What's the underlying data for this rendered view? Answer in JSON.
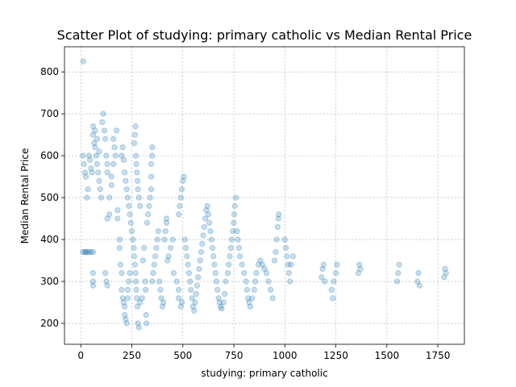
{
  "chart_data": {
    "type": "scatter",
    "title": "Scatter Plot of studying: primary catholic vs Median Rental Price",
    "xlabel": "studying: primary catholic",
    "ylabel": "Median Rental Price",
    "xlim": [
      -80,
      1880
    ],
    "ylim": [
      150,
      860
    ],
    "xticks": [
      0,
      250,
      500,
      750,
      1000,
      1250,
      1500,
      1750
    ],
    "yticks": [
      200,
      300,
      400,
      500,
      600,
      700,
      800
    ],
    "grid": true,
    "marker_color": "#1f77b4",
    "marker_alpha": 0.25,
    "points": [
      [
        12,
        825
      ],
      [
        10,
        600
      ],
      [
        15,
        580
      ],
      [
        20,
        560
      ],
      [
        25,
        550
      ],
      [
        30,
        500
      ],
      [
        35,
        520
      ],
      [
        40,
        600
      ],
      [
        45,
        590
      ],
      [
        50,
        570
      ],
      [
        55,
        560
      ],
      [
        60,
        650
      ],
      [
        65,
        630
      ],
      [
        70,
        620
      ],
      [
        75,
        600
      ],
      [
        80,
        580
      ],
      [
        85,
        560
      ],
      [
        90,
        540
      ],
      [
        95,
        520
      ],
      [
        100,
        500
      ],
      [
        105,
        680
      ],
      [
        110,
        700
      ],
      [
        115,
        660
      ],
      [
        120,
        640
      ],
      [
        125,
        600
      ],
      [
        130,
        580
      ],
      [
        60,
        670
      ],
      [
        70,
        660
      ],
      [
        80,
        640
      ],
      [
        90,
        610
      ],
      [
        20,
        370
      ],
      [
        30,
        370
      ],
      [
        40,
        370
      ],
      [
        50,
        370
      ],
      [
        60,
        370
      ],
      [
        10,
        370
      ],
      [
        25,
        370
      ],
      [
        60,
        320
      ],
      [
        60,
        300
      ],
      [
        60,
        290
      ],
      [
        120,
        320
      ],
      [
        125,
        300
      ],
      [
        130,
        290
      ],
      [
        130,
        450
      ],
      [
        140,
        460
      ],
      [
        140,
        500
      ],
      [
        150,
        530
      ],
      [
        150,
        550
      ],
      [
        160,
        580
      ],
      [
        160,
        640
      ],
      [
        165,
        620
      ],
      [
        170,
        600
      ],
      [
        175,
        660
      ],
      [
        180,
        470
      ],
      [
        180,
        450
      ],
      [
        190,
        400
      ],
      [
        190,
        380
      ],
      [
        195,
        340
      ],
      [
        200,
        320
      ],
      [
        200,
        280
      ],
      [
        205,
        260
      ],
      [
        210,
        250
      ],
      [
        215,
        240
      ],
      [
        215,
        220
      ],
      [
        220,
        210
      ],
      [
        225,
        200
      ],
      [
        230,
        260
      ],
      [
        230,
        280
      ],
      [
        235,
        300
      ],
      [
        240,
        320
      ],
      [
        200,
        600
      ],
      [
        205,
        620
      ],
      [
        210,
        590
      ],
      [
        215,
        560
      ],
      [
        220,
        540
      ],
      [
        225,
        520
      ],
      [
        230,
        500
      ],
      [
        235,
        480
      ],
      [
        240,
        460
      ],
      [
        245,
        440
      ],
      [
        250,
        420
      ],
      [
        255,
        400
      ],
      [
        260,
        380
      ],
      [
        262,
        360
      ],
      [
        265,
        340
      ],
      [
        268,
        320
      ],
      [
        270,
        300
      ],
      [
        272,
        280
      ],
      [
        275,
        260
      ],
      [
        278,
        240
      ],
      [
        262,
        630
      ],
      [
        265,
        650
      ],
      [
        268,
        670
      ],
      [
        270,
        600
      ],
      [
        272,
        580
      ],
      [
        275,
        560
      ],
      [
        278,
        540
      ],
      [
        280,
        520
      ],
      [
        285,
        500
      ],
      [
        290,
        480
      ],
      [
        280,
        200
      ],
      [
        285,
        190
      ],
      [
        290,
        250
      ],
      [
        300,
        260
      ],
      [
        305,
        350
      ],
      [
        310,
        380
      ],
      [
        315,
        300
      ],
      [
        318,
        280
      ],
      [
        320,
        220
      ],
      [
        322,
        200
      ],
      [
        325,
        440
      ],
      [
        330,
        460
      ],
      [
        335,
        480
      ],
      [
        340,
        500
      ],
      [
        345,
        520
      ],
      [
        345,
        550
      ],
      [
        345,
        580
      ],
      [
        350,
        600
      ],
      [
        350,
        620
      ],
      [
        350,
        300
      ],
      [
        355,
        320
      ],
      [
        360,
        340
      ],
      [
        365,
        360
      ],
      [
        370,
        380
      ],
      [
        375,
        400
      ],
      [
        380,
        420
      ],
      [
        385,
        300
      ],
      [
        390,
        280
      ],
      [
        395,
        260
      ],
      [
        400,
        240
      ],
      [
        405,
        250
      ],
      [
        410,
        400
      ],
      [
        415,
        420
      ],
      [
        420,
        440
      ],
      [
        420,
        450
      ],
      [
        425,
        350
      ],
      [
        430,
        360
      ],
      [
        440,
        380
      ],
      [
        450,
        400
      ],
      [
        455,
        320
      ],
      [
        470,
        300
      ],
      [
        480,
        280
      ],
      [
        480,
        260
      ],
      [
        490,
        240
      ],
      [
        495,
        250
      ],
      [
        480,
        460
      ],
      [
        485,
        480
      ],
      [
        490,
        500
      ],
      [
        495,
        520
      ],
      [
        500,
        540
      ],
      [
        505,
        550
      ],
      [
        510,
        400
      ],
      [
        515,
        380
      ],
      [
        520,
        360
      ],
      [
        525,
        340
      ],
      [
        530,
        320
      ],
      [
        535,
        300
      ],
      [
        540,
        280
      ],
      [
        545,
        260
      ],
      [
        550,
        240
      ],
      [
        555,
        230
      ],
      [
        560,
        250
      ],
      [
        565,
        270
      ],
      [
        570,
        290
      ],
      [
        575,
        310
      ],
      [
        580,
        330
      ],
      [
        585,
        350
      ],
      [
        590,
        370
      ],
      [
        595,
        390
      ],
      [
        600,
        410
      ],
      [
        605,
        430
      ],
      [
        610,
        450
      ],
      [
        615,
        470
      ],
      [
        620,
        480
      ],
      [
        625,
        460
      ],
      [
        630,
        440
      ],
      [
        635,
        420
      ],
      [
        640,
        400
      ],
      [
        645,
        380
      ],
      [
        650,
        360
      ],
      [
        655,
        340
      ],
      [
        660,
        320
      ],
      [
        665,
        300
      ],
      [
        670,
        280
      ],
      [
        675,
        260
      ],
      [
        680,
        250
      ],
      [
        685,
        240
      ],
      [
        690,
        235
      ],
      [
        700,
        250
      ],
      [
        705,
        270
      ],
      [
        710,
        300
      ],
      [
        720,
        320
      ],
      [
        725,
        340
      ],
      [
        730,
        360
      ],
      [
        735,
        380
      ],
      [
        740,
        400
      ],
      [
        745,
        420
      ],
      [
        750,
        440
      ],
      [
        752,
        460
      ],
      [
        755,
        480
      ],
      [
        760,
        500
      ],
      [
        765,
        420
      ],
      [
        770,
        400
      ],
      [
        775,
        380
      ],
      [
        780,
        360
      ],
      [
        790,
        340
      ],
      [
        800,
        320
      ],
      [
        810,
        300
      ],
      [
        815,
        280
      ],
      [
        820,
        260
      ],
      [
        825,
        250
      ],
      [
        830,
        240
      ],
      [
        840,
        260
      ],
      [
        850,
        280
      ],
      [
        855,
        300
      ],
      [
        860,
        320
      ],
      [
        870,
        340
      ],
      [
        880,
        350
      ],
      [
        890,
        340
      ],
      [
        900,
        330
      ],
      [
        910,
        320
      ],
      [
        920,
        300
      ],
      [
        930,
        280
      ],
      [
        940,
        260
      ],
      [
        950,
        350
      ],
      [
        955,
        370
      ],
      [
        960,
        400
      ],
      [
        965,
        430
      ],
      [
        968,
        450
      ],
      [
        970,
        460
      ],
      [
        1000,
        400
      ],
      [
        1005,
        380
      ],
      [
        1010,
        360
      ],
      [
        1015,
        340
      ],
      [
        1020,
        320
      ],
      [
        1025,
        300
      ],
      [
        1030,
        340
      ],
      [
        1040,
        360
      ],
      [
        1180,
        310
      ],
      [
        1185,
        330
      ],
      [
        1190,
        340
      ],
      [
        1195,
        300
      ],
      [
        1230,
        280
      ],
      [
        1235,
        260
      ],
      [
        1240,
        300
      ],
      [
        1250,
        320
      ],
      [
        1255,
        340
      ],
      [
        1360,
        320
      ],
      [
        1365,
        340
      ],
      [
        1370,
        330
      ],
      [
        1550,
        300
      ],
      [
        1555,
        320
      ],
      [
        1560,
        340
      ],
      [
        1650,
        300
      ],
      [
        1655,
        320
      ],
      [
        1660,
        290
      ],
      [
        1780,
        310
      ],
      [
        1785,
        330
      ],
      [
        1790,
        320
      ],
      [
        130,
        560
      ]
    ]
  }
}
